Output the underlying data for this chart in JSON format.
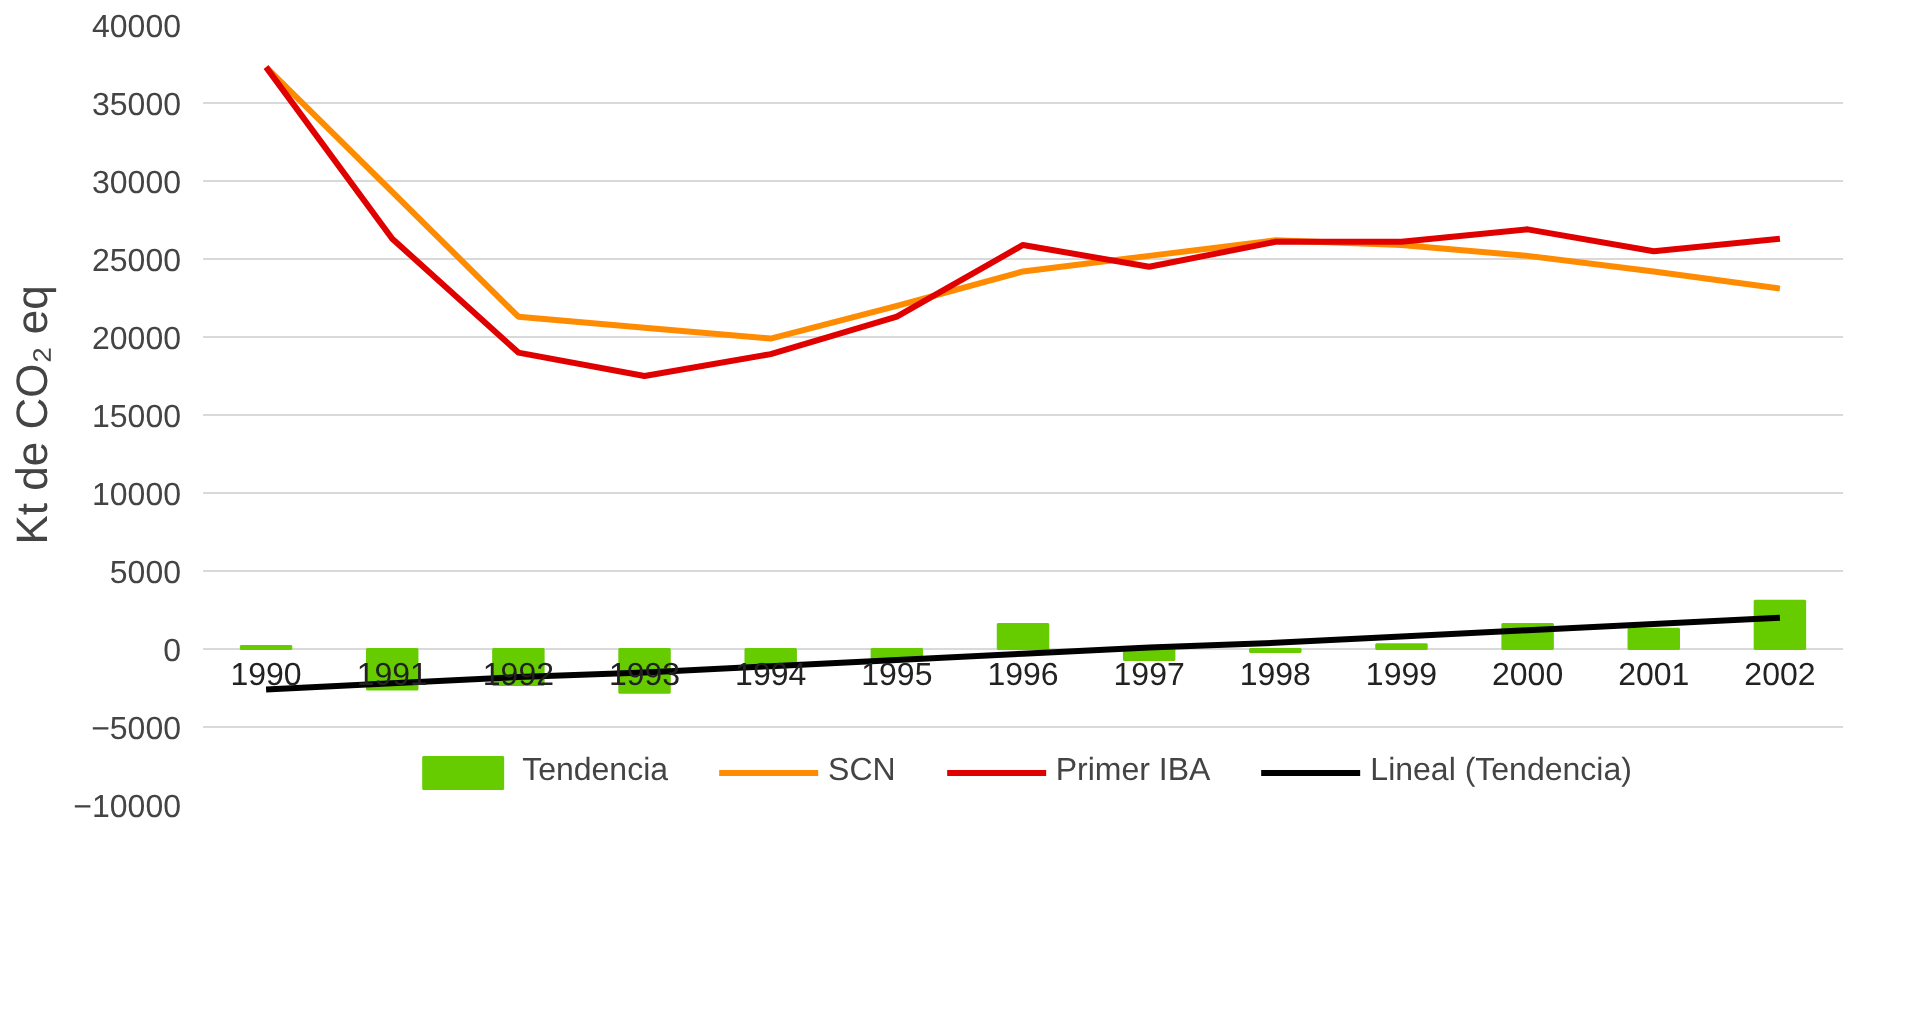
{
  "chart_data": {
    "type": "line",
    "ylabel": "Kt de CO₂ eq",
    "categories": [
      "1990",
      "1991",
      "1992",
      "1993",
      "1994",
      "1995",
      "1996",
      "1997",
      "1998",
      "1999",
      "2000",
      "2001",
      "2002"
    ],
    "series": [
      {
        "name": "Tendencia",
        "type": "bar",
        "color": "#66cc00",
        "values": [
          200,
          -2600,
          -2300,
          -2800,
          -1000,
          -600,
          1600,
          -700,
          -200,
          300,
          1600,
          1300,
          3100
        ]
      },
      {
        "name": "SCN",
        "color": "#ff8c00",
        "values": [
          37300,
          29300,
          21300,
          20600,
          19900,
          22000,
          24200,
          25200,
          26200,
          25900,
          25200,
          24200,
          23100
        ]
      },
      {
        "name": "Primer IBA",
        "color": "#e00000",
        "values": [
          37300,
          26300,
          19000,
          17500,
          18900,
          21300,
          25900,
          24500,
          26100,
          26100,
          26900,
          25500,
          26300
        ]
      },
      {
        "name": "Lineal (Tendencia)",
        "type": "line",
        "color": "#000000",
        "values": [
          -2600,
          -2200,
          -1800,
          -1500,
          -1100,
          -700,
          -300,
          100,
          400,
          800,
          1200,
          1600,
          2000
        ]
      }
    ],
    "ylim": [
      -10000,
      40000
    ],
    "yticks": [
      -10000,
      -5000,
      0,
      5000,
      10000,
      15000,
      20000,
      25000,
      30000,
      35000,
      40000
    ],
    "grid": "y",
    "legend": "bottom"
  }
}
